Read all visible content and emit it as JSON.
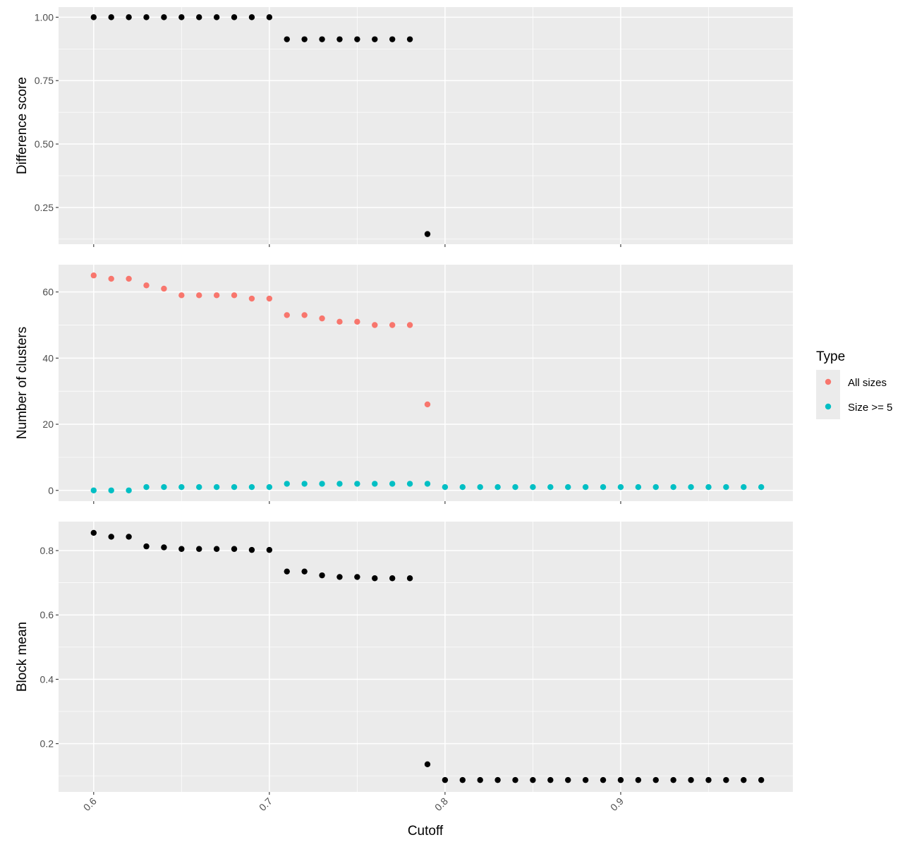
{
  "chart_data": {
    "type": "scatter",
    "xlabel": "Cutoff",
    "x_ticks": [
      "0.6",
      "0.7",
      "0.8",
      "0.9"
    ],
    "x_tick_values": [
      0.6,
      0.7,
      0.8,
      0.9
    ],
    "xlim": [
      0.58,
      0.998
    ],
    "grid": true,
    "legend": {
      "title": "Type",
      "position": "right",
      "entries": [
        {
          "label": "All sizes",
          "color": "#F8766D"
        },
        {
          "label": "Size >= 5",
          "color": "#00BFC4"
        }
      ]
    },
    "panels": [
      {
        "ylabel": "Difference score",
        "y_ticks": [
          "0.25",
          "0.50",
          "0.75",
          "1.00"
        ],
        "y_tick_values": [
          0.25,
          0.5,
          0.75,
          1.0
        ],
        "ylim": [
          0.105,
          1.04
        ],
        "series": [
          {
            "color": "#000000",
            "x": [
              0.6,
              0.61,
              0.62,
              0.63,
              0.64,
              0.65,
              0.66,
              0.67,
              0.68,
              0.69,
              0.7,
              0.71,
              0.72,
              0.73,
              0.74,
              0.75,
              0.76,
              0.77,
              0.78,
              0.79
            ],
            "y": [
              1.0,
              1.0,
              1.0,
              1.0,
              1.0,
              1.0,
              1.0,
              1.0,
              1.0,
              1.0,
              1.0,
              0.913,
              0.913,
              0.913,
              0.913,
              0.913,
              0.913,
              0.913,
              0.913,
              0.145
            ]
          }
        ]
      },
      {
        "ylabel": "Number of clusters",
        "y_ticks": [
          "0",
          "20",
          "40",
          "60"
        ],
        "y_tick_values": [
          0,
          20,
          40,
          60
        ],
        "ylim": [
          -3.25,
          68.25
        ],
        "series": [
          {
            "name": "All sizes",
            "color": "#F8766D",
            "x": [
              0.6,
              0.61,
              0.62,
              0.63,
              0.64,
              0.65,
              0.66,
              0.67,
              0.68,
              0.69,
              0.7,
              0.71,
              0.72,
              0.73,
              0.74,
              0.75,
              0.76,
              0.77,
              0.78,
              0.79
            ],
            "y": [
              65,
              64,
              64,
              62,
              61,
              59,
              59,
              59,
              59,
              58,
              58,
              53,
              53,
              52,
              51,
              51,
              50,
              50,
              50,
              26
            ]
          },
          {
            "name": "Size >= 5",
            "color": "#00BFC4",
            "x": [
              0.6,
              0.61,
              0.62,
              0.63,
              0.64,
              0.65,
              0.66,
              0.67,
              0.68,
              0.69,
              0.7,
              0.71,
              0.72,
              0.73,
              0.74,
              0.75,
              0.76,
              0.77,
              0.78,
              0.79,
              0.8,
              0.81,
              0.82,
              0.83,
              0.84,
              0.85,
              0.86,
              0.87,
              0.88,
              0.89,
              0.9,
              0.91,
              0.92,
              0.93,
              0.94,
              0.95,
              0.96,
              0.97,
              0.98
            ],
            "y": [
              0,
              0,
              0,
              1,
              1,
              1,
              1,
              1,
              1,
              1,
              1,
              2,
              2,
              2,
              2,
              2,
              2,
              2,
              2,
              2,
              1,
              1,
              1,
              1,
              1,
              1,
              1,
              1,
              1,
              1,
              1,
              1,
              1,
              1,
              1,
              1,
              1,
              1,
              1
            ]
          }
        ]
      },
      {
        "ylabel": "Block mean",
        "y_ticks": [
          "0.2",
          "0.4",
          "0.6",
          "0.8"
        ],
        "y_tick_values": [
          0.2,
          0.4,
          0.6,
          0.8
        ],
        "ylim": [
          0.05,
          0.89
        ],
        "series": [
          {
            "color": "#000000",
            "x": [
              0.6,
              0.61,
              0.62,
              0.63,
              0.64,
              0.65,
              0.66,
              0.67,
              0.68,
              0.69,
              0.7,
              0.71,
              0.72,
              0.73,
              0.74,
              0.75,
              0.76,
              0.77,
              0.78,
              0.79,
              0.8,
              0.81,
              0.82,
              0.83,
              0.84,
              0.85,
              0.86,
              0.87,
              0.88,
              0.89,
              0.9,
              0.91,
              0.92,
              0.93,
              0.94,
              0.95,
              0.96,
              0.97,
              0.98
            ],
            "y": [
              0.855,
              0.843,
              0.843,
              0.813,
              0.81,
              0.805,
              0.805,
              0.805,
              0.805,
              0.802,
              0.802,
              0.735,
              0.735,
              0.723,
              0.718,
              0.718,
              0.714,
              0.714,
              0.714,
              0.136,
              0.087,
              0.087,
              0.087,
              0.087,
              0.087,
              0.087,
              0.087,
              0.087,
              0.087,
              0.087,
              0.087,
              0.087,
              0.087,
              0.087,
              0.087,
              0.087,
              0.087,
              0.087,
              0.087
            ]
          }
        ]
      }
    ]
  }
}
